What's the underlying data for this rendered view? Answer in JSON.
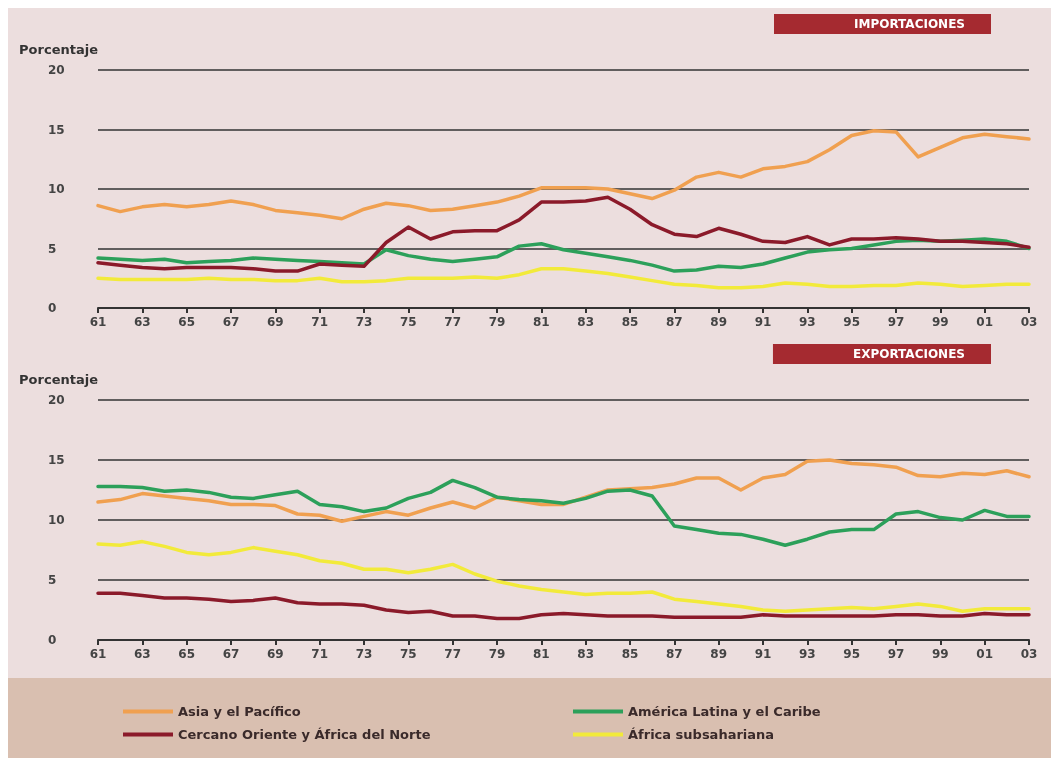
{
  "chart_data": [
    {
      "type": "line",
      "title": "IMPORTACIONES",
      "ylabel": "Porcentaje",
      "categories": [
        "61",
        null,
        "63",
        null,
        "65",
        null,
        "67",
        null,
        "69",
        null,
        "71",
        null,
        "73",
        null,
        "75",
        null,
        "77",
        null,
        "79",
        null,
        "81",
        null,
        "83",
        null,
        "85",
        null,
        "87",
        null,
        "89",
        null,
        "91",
        null,
        "93",
        null,
        "95",
        null,
        "97",
        null,
        "99",
        null,
        "01",
        null,
        "03"
      ],
      "ylim": [
        0,
        20
      ],
      "yticks": [
        0,
        5,
        10,
        15,
        20
      ],
      "grid": "y",
      "legend": false,
      "marker": "none",
      "line_style": "solid",
      "series": [
        {
          "color": "#f0a050",
          "values": [
            8.6,
            8.1,
            8.5,
            8.7,
            8.5,
            8.7,
            9.0,
            8.7,
            8.2,
            8.0,
            7.8,
            7.5,
            8.3,
            8.8,
            8.6,
            8.2,
            8.3,
            8.6,
            8.9,
            9.4,
            10.1,
            10.1,
            10.1,
            10.0,
            9.6,
            9.2,
            9.9,
            11.0,
            11.4,
            11.0,
            11.7,
            11.9,
            12.3,
            13.3,
            14.5,
            14.9,
            14.8,
            12.7,
            13.5,
            14.3,
            14.6,
            14.4,
            14.2
          ]
        },
        {
          "color": "#2ca05a",
          "values": [
            4.2,
            4.1,
            4.0,
            4.1,
            3.8,
            3.9,
            4.0,
            4.2,
            4.1,
            4.0,
            3.9,
            3.8,
            3.7,
            4.9,
            4.4,
            4.1,
            3.9,
            4.1,
            4.3,
            5.2,
            5.4,
            4.9,
            4.6,
            4.3,
            4.0,
            3.6,
            3.1,
            3.2,
            3.5,
            3.4,
            3.7,
            4.2,
            4.7,
            4.9,
            5.0,
            5.3,
            5.6,
            5.7,
            5.6,
            5.7,
            5.8,
            5.6,
            5.0
          ]
        },
        {
          "color": "#8b1a2a",
          "values": [
            3.8,
            3.6,
            3.4,
            3.3,
            3.4,
            3.4,
            3.4,
            3.3,
            3.1,
            3.1,
            3.7,
            3.6,
            3.5,
            5.5,
            6.8,
            5.8,
            6.4,
            6.5,
            6.5,
            7.4,
            8.9,
            8.9,
            9.0,
            9.3,
            8.3,
            7.0,
            6.2,
            6.0,
            6.7,
            6.2,
            5.6,
            5.5,
            6.0,
            5.3,
            5.8,
            5.8,
            5.9,
            5.8,
            5.6,
            5.6,
            5.5,
            5.4,
            5.1
          ]
        },
        {
          "color": "#f2ea3a",
          "values": [
            2.5,
            2.4,
            2.4,
            2.4,
            2.4,
            2.5,
            2.4,
            2.4,
            2.3,
            2.3,
            2.5,
            2.2,
            2.2,
            2.3,
            2.5,
            2.5,
            2.5,
            2.6,
            2.5,
            2.8,
            3.3,
            3.3,
            3.1,
            2.9,
            2.6,
            2.3,
            2.0,
            1.9,
            1.7,
            1.7,
            1.8,
            2.1,
            2.0,
            1.8,
            1.8,
            1.9,
            1.9,
            2.1,
            2.0,
            1.8,
            1.9,
            2.0,
            2.0
          ]
        }
      ]
    },
    {
      "type": "line",
      "title": "EXPORTACIONES",
      "ylabel": "Porcentaje",
      "categories": [
        "61",
        null,
        "63",
        null,
        "65",
        null,
        "67",
        null,
        "69",
        null,
        "71",
        null,
        "73",
        null,
        "75",
        null,
        "77",
        null,
        "79",
        null,
        "81",
        null,
        "83",
        null,
        "85",
        null,
        "87",
        null,
        "89",
        null,
        "91",
        null,
        "93",
        null,
        "95",
        null,
        "97",
        null,
        "99",
        null,
        "01",
        null,
        "03"
      ],
      "ylim": [
        0,
        20
      ],
      "yticks": [
        0,
        5,
        10,
        15,
        20
      ],
      "grid": "y",
      "legend": "bottom",
      "marker": "none",
      "line_style": "solid",
      "series": [
        {
          "name": "Asia y el Pacífico",
          "color": "#f0a050",
          "values": [
            11.5,
            11.7,
            12.2,
            12.0,
            11.8,
            11.6,
            11.3,
            11.3,
            11.2,
            10.5,
            10.4,
            9.9,
            10.3,
            10.7,
            10.4,
            11.0,
            11.5,
            11.0,
            11.9,
            11.6,
            11.3,
            11.3,
            11.9,
            12.5,
            12.6,
            12.7,
            13.0,
            13.5,
            13.5,
            12.5,
            13.5,
            13.8,
            14.9,
            15.0,
            14.7,
            14.6,
            14.4,
            13.7,
            13.6,
            13.9,
            13.8,
            14.1,
            13.6
          ]
        },
        {
          "name": "América Latina y el Caribe",
          "color": "#2ca05a",
          "values": [
            12.8,
            12.8,
            12.7,
            12.4,
            12.5,
            12.3,
            11.9,
            11.8,
            12.1,
            12.4,
            11.3,
            11.1,
            10.7,
            11.0,
            11.8,
            12.3,
            13.3,
            12.7,
            11.9,
            11.7,
            11.6,
            11.4,
            11.8,
            12.4,
            12.5,
            12.0,
            9.5,
            9.2,
            8.9,
            8.8,
            8.4,
            7.9,
            8.4,
            9.0,
            9.2,
            9.2,
            10.5,
            10.7,
            10.2,
            10.0,
            10.8,
            10.3,
            10.3
          ]
        },
        {
          "name": "Cercano Oriente y África del Norte",
          "color": "#8b1a2a",
          "values": [
            3.9,
            3.9,
            3.7,
            3.5,
            3.5,
            3.4,
            3.2,
            3.3,
            3.5,
            3.1,
            3.0,
            3.0,
            2.9,
            2.5,
            2.3,
            2.4,
            2.0,
            2.0,
            1.8,
            1.8,
            2.1,
            2.2,
            2.1,
            2.0,
            2.0,
            2.0,
            1.9,
            1.9,
            1.9,
            1.9,
            2.1,
            2.0,
            2.0,
            2.0,
            2.0,
            2.0,
            2.1,
            2.1,
            2.0,
            2.0,
            2.2,
            2.1,
            2.1
          ]
        },
        {
          "name": "África subsahariana",
          "color": "#f2ea3a",
          "values": [
            8.0,
            7.9,
            8.2,
            7.8,
            7.3,
            7.1,
            7.3,
            7.7,
            7.4,
            7.1,
            6.6,
            6.4,
            5.9,
            5.9,
            5.6,
            5.9,
            6.3,
            5.5,
            4.9,
            4.5,
            4.2,
            4.0,
            3.8,
            3.9,
            3.9,
            4.0,
            3.4,
            3.2,
            3.0,
            2.8,
            2.5,
            2.4,
            2.5,
            2.6,
            2.7,
            2.6,
            2.8,
            3.0,
            2.8,
            2.4,
            2.6,
            2.6,
            2.6
          ]
        }
      ]
    }
  ]
}
